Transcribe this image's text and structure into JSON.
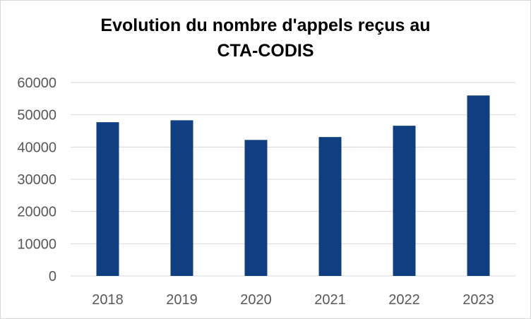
{
  "chart_data": {
    "type": "bar",
    "title_lines": [
      "Evolution du nombre d'appels reçus au",
      "CTA-CODIS"
    ],
    "categories": [
      "2018",
      "2019",
      "2020",
      "2021",
      "2022",
      "2023"
    ],
    "values": [
      47700,
      48300,
      42200,
      43100,
      46600,
      56000
    ],
    "ylim": [
      0,
      60000
    ],
    "yticks": [
      0,
      10000,
      20000,
      30000,
      40000,
      50000,
      60000
    ],
    "grid": true,
    "bar_color": "#0f3f80",
    "grid_color": "#d9d9d9"
  }
}
